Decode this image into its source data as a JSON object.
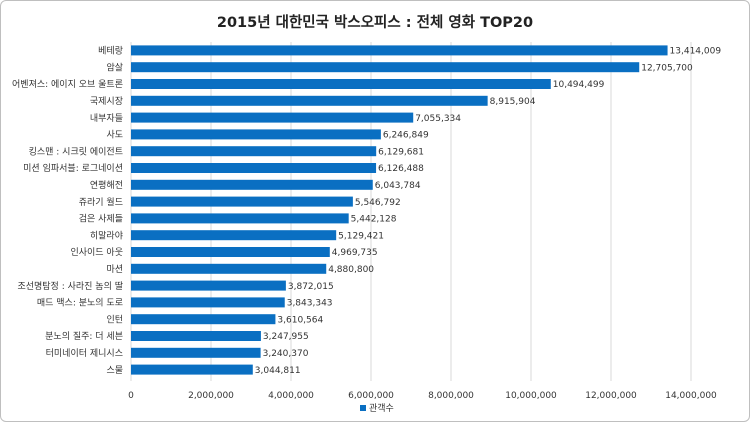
{
  "chart_data": {
    "type": "bar",
    "orientation": "horizontal",
    "title": "2015년 대한민국 박스오피스 : 전체 영화 TOP20",
    "categories": [
      "베테랑",
      "암살",
      "어벤져스: 에이지 오브 울트론",
      "국제시장",
      "내부자들",
      "사도",
      "킹스맨 : 시크릿 에이전트",
      "미션 임파서블: 로그네이션",
      "연평해전",
      "쥬라기 월드",
      "검은 사제들",
      "히말라야",
      "인사이드 아웃",
      "마션",
      "조선명탐정 : 사라진 놈의 딸",
      "매드 맥스: 분노의 도로",
      "인턴",
      "분노의 질주: 더 세븐",
      "터미네이터 제니시스",
      "스물"
    ],
    "series": [
      {
        "name": "관객수",
        "color": "#0a6fc2",
        "values": [
          13414009,
          12705700,
          10494499,
          8915904,
          7055334,
          6246849,
          6129681,
          6126488,
          6043784,
          5546792,
          5442128,
          5129421,
          4969735,
          4880800,
          3872015,
          3843343,
          3610564,
          3247955,
          3240370,
          3044811
        ],
        "value_labels": [
          "13,414,009",
          "12,705,700",
          "10,494,499",
          "8,915,904",
          "7,055,334",
          "6,246,849",
          "6,129,681",
          "6,126,488",
          "6,043,784",
          "5,546,792",
          "5,442,128",
          "5,129,421",
          "4,969,735",
          "4,880,800",
          "3,872,015",
          "3,843,343",
          "3,610,564",
          "3,247,955",
          "3,240,370",
          "3,044,811"
        ]
      }
    ],
    "xlim": [
      0,
      14000000
    ],
    "x_ticks": [
      0,
      2000000,
      4000000,
      6000000,
      8000000,
      10000000,
      12000000,
      14000000
    ],
    "x_tick_labels": [
      "0",
      "2,000,000",
      "4,000,000",
      "6,000,000",
      "8,000,000",
      "10,000,000",
      "12,000,000",
      "14,000,000"
    ],
    "grid": true,
    "legend": "bottom"
  }
}
